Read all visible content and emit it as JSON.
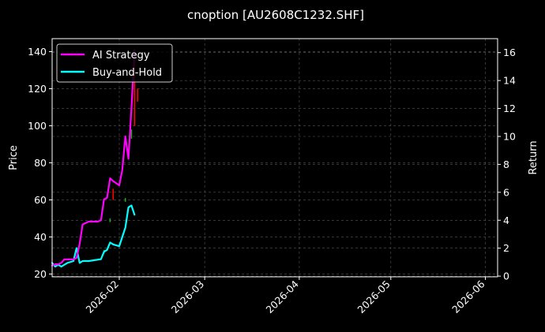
{
  "chart_data": {
    "type": "line",
    "title": "cnoption [AU2608C1232.SHF]",
    "ylabel": "Price",
    "y2label": "Return",
    "ylim": [
      18.5,
      147
    ],
    "y2lim": [
      -0.05,
      17.0
    ],
    "xlim": [
      "2026-01-10",
      "2026-06-05"
    ],
    "yticks": [
      20,
      40,
      60,
      80,
      100,
      120,
      140
    ],
    "y2ticks": [
      0,
      2,
      4,
      6,
      8,
      10,
      12,
      14,
      16
    ],
    "xticks": [
      "2026-02-01",
      "2026-03-01",
      "2026-04-01",
      "2026-05-01",
      "2026-06-01"
    ],
    "xticklabels": [
      "2026-02",
      "2026-03",
      "2026-04",
      "2026-05",
      "2026-06"
    ],
    "grid": true,
    "legend_position": "top-left",
    "series": [
      {
        "name": "AI Strategy",
        "axis": "right",
        "color": "#ff00ff",
        "points": [
          [
            "2026-01-10",
            0.75
          ],
          [
            "2026-01-11",
            0.85
          ],
          [
            "2026-01-12",
            0.85
          ],
          [
            "2026-01-13",
            0.95
          ],
          [
            "2026-01-14",
            1.2
          ],
          [
            "2026-01-17",
            1.2
          ],
          [
            "2026-01-18",
            1.3
          ],
          [
            "2026-01-19",
            2.3
          ],
          [
            "2026-01-20",
            3.7
          ],
          [
            "2026-01-21",
            3.8
          ],
          [
            "2026-01-22",
            3.9
          ],
          [
            "2026-01-23",
            3.9
          ],
          [
            "2026-01-25",
            3.9
          ],
          [
            "2026-01-26",
            4.0
          ],
          [
            "2026-01-27",
            5.5
          ],
          [
            "2026-01-28",
            5.6
          ],
          [
            "2026-01-29",
            7.0
          ],
          [
            "2026-01-30",
            6.8
          ],
          [
            "2026-02-01",
            6.5
          ],
          [
            "2026-02-02",
            7.6
          ],
          [
            "2026-02-03",
            10.0
          ],
          [
            "2026-02-04",
            8.4
          ],
          [
            "2026-02-05",
            12.0
          ],
          [
            "2026-02-06",
            16.2
          ]
        ]
      },
      {
        "name": "Buy-and-Hold",
        "axis": "left",
        "color": "#00ffff",
        "points": [
          [
            "2026-01-10",
            26
          ],
          [
            "2026-01-11",
            24
          ],
          [
            "2026-01-12",
            25
          ],
          [
            "2026-01-13",
            24
          ],
          [
            "2026-01-14",
            25
          ],
          [
            "2026-01-15",
            26
          ],
          [
            "2026-01-17",
            27
          ],
          [
            "2026-01-18",
            34
          ],
          [
            "2026-01-19",
            26
          ],
          [
            "2026-01-20",
            27
          ],
          [
            "2026-01-21",
            27
          ],
          [
            "2026-01-22",
            27
          ],
          [
            "2026-01-26",
            28
          ],
          [
            "2026-01-27",
            32
          ],
          [
            "2026-01-28",
            33
          ],
          [
            "2026-01-29",
            37
          ],
          [
            "2026-01-30",
            36
          ],
          [
            "2026-02-01",
            35
          ],
          [
            "2026-02-02",
            40
          ],
          [
            "2026-02-03",
            45
          ],
          [
            "2026-02-04",
            56
          ],
          [
            "2026-02-05",
            57
          ],
          [
            "2026-02-06",
            52
          ]
        ]
      }
    ],
    "candles": [
      {
        "x": "2026-01-27",
        "low": 31,
        "high": 33,
        "color": "#2ca02c"
      },
      {
        "x": "2026-01-29",
        "low": 48,
        "high": 50,
        "color": "#2ca02c"
      },
      {
        "x": "2026-01-30",
        "low": 60,
        "high": 66,
        "color": "#ff0000"
      },
      {
        "x": "2026-02-03",
        "low": 59,
        "high": 61,
        "color": "#2ca02c"
      },
      {
        "x": "2026-02-05",
        "low": 93,
        "high": 98,
        "color": "#2ca02c"
      },
      {
        "x": "2026-02-06",
        "low": 100,
        "high": 140,
        "color": "#ff0000"
      },
      {
        "x": "2026-02-07",
        "low": 113,
        "high": 120,
        "color": "#ff0000"
      }
    ]
  }
}
